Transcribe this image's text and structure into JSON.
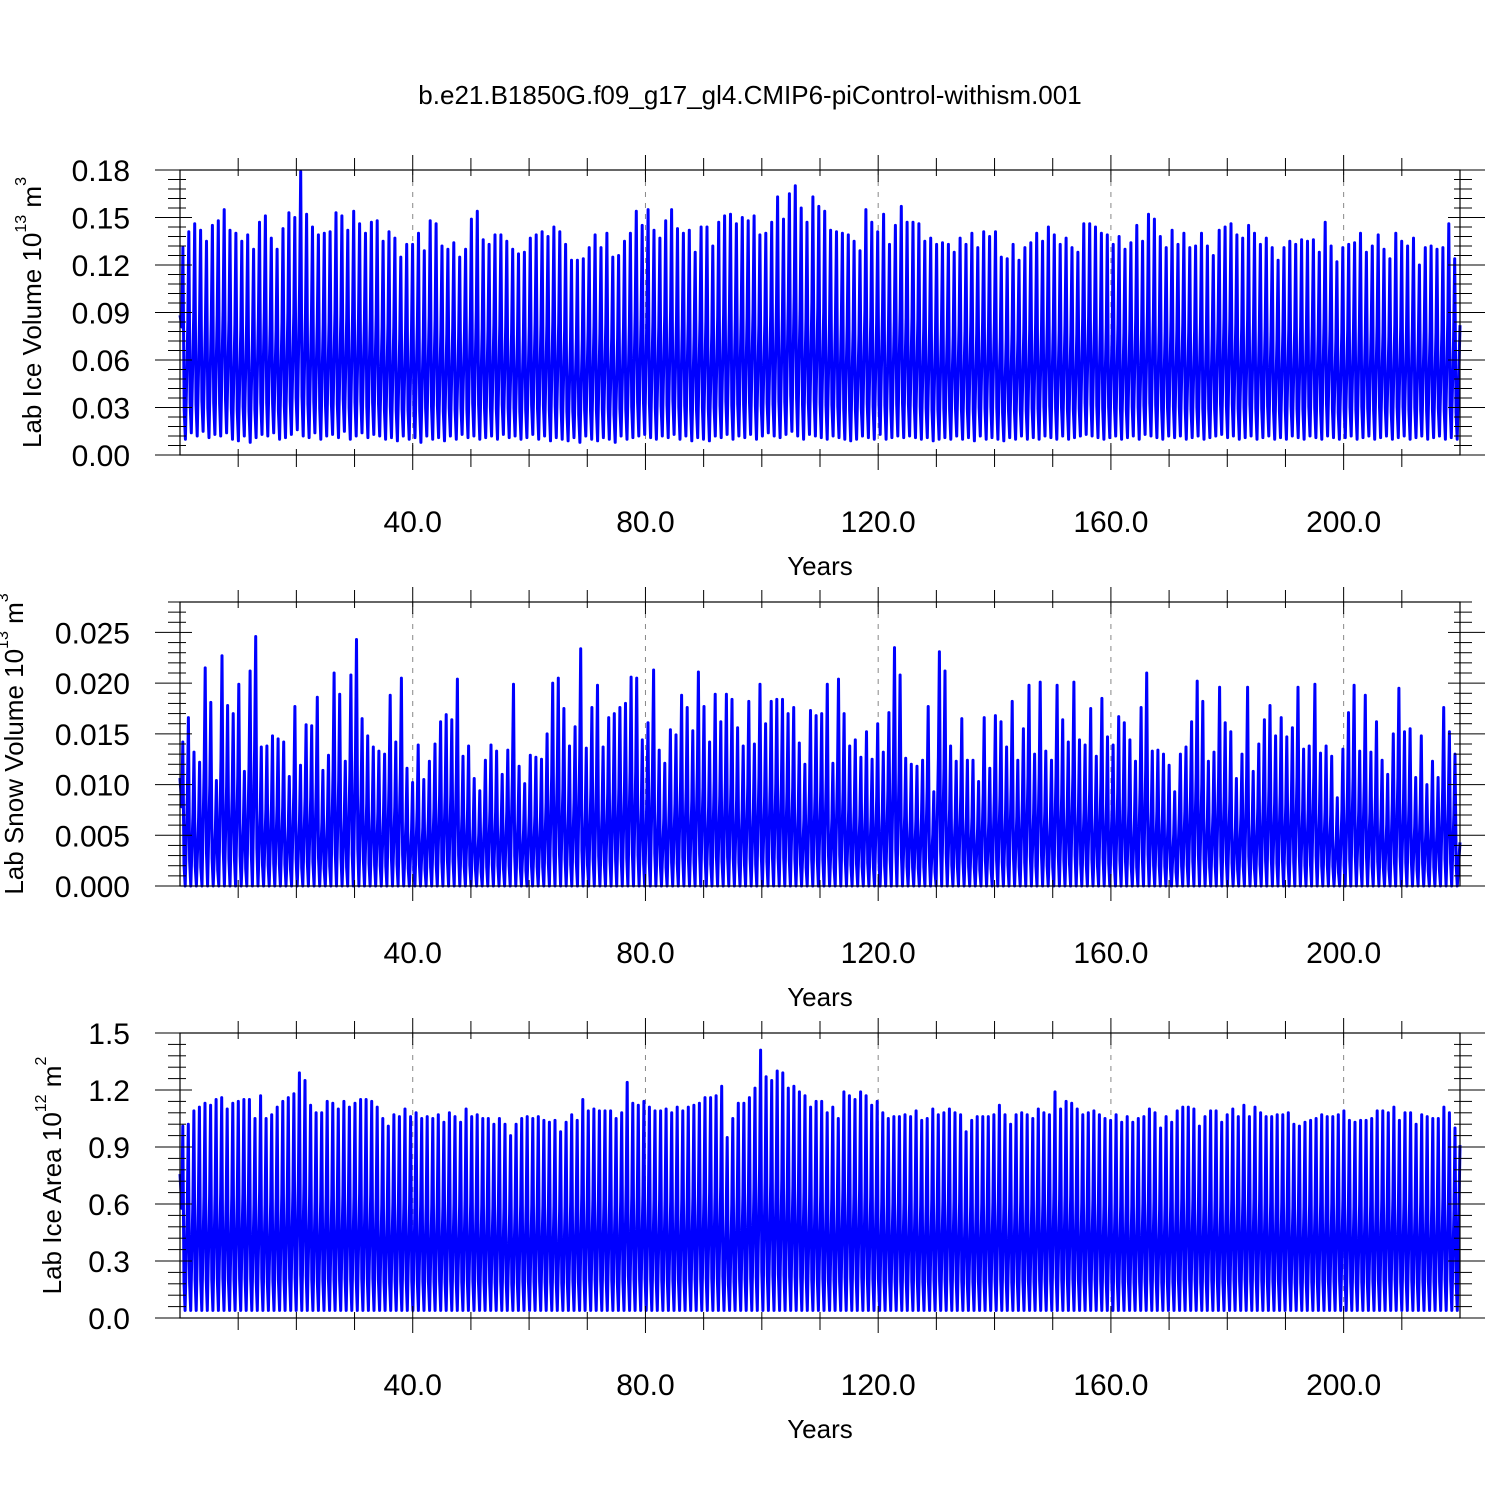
{
  "title": "b.e21.B1850G.f09_g17_gl4.CMIP6-piControl-withism.001",
  "colors": {
    "series": "#0000ff",
    "axis": "#000000",
    "grid": "#888888"
  },
  "chart_data": [
    {
      "type": "line",
      "xlabel": "Years",
      "ylabel": {
        "main": "Lab Ice Volume 10",
        "sup": "13",
        "unit": " m",
        "unit_sup": "3"
      },
      "xlim": [
        0,
        220
      ],
      "ylim": [
        0,
        0.18
      ],
      "x_ticks": [
        40,
        80,
        120,
        160,
        200
      ],
      "x_tick_labels": [
        "40.0",
        "80.0",
        "120.0",
        "160.0",
        "200.0"
      ],
      "y_ticks": [
        0,
        0.03,
        0.06,
        0.09,
        0.12,
        0.15,
        0.18
      ],
      "y_tick_labels": [
        "0.00",
        "0.03",
        "0.06",
        "0.09",
        "0.12",
        "0.15",
        "0.18"
      ],
      "grid": "dashed vertical at major x ticks",
      "series": [
        {
          "note_x_start": 0,
          "annual_max": [
            0.131,
            0.141,
            0.146,
            0.142,
            0.135,
            0.145,
            0.148,
            0.155,
            0.142,
            0.14,
            0.135,
            0.139,
            0.13,
            0.147,
            0.151,
            0.137,
            0.13,
            0.143,
            0.153,
            0.15,
            0.179,
            0.152,
            0.144,
            0.139,
            0.14,
            0.141,
            0.153,
            0.151,
            0.142,
            0.154,
            0.146,
            0.14,
            0.147,
            0.148,
            0.135,
            0.141,
            0.137,
            0.125,
            0.133,
            0.133,
            0.14,
            0.129,
            0.148,
            0.146,
            0.132,
            0.13,
            0.134,
            0.125,
            0.13,
            0.149,
            0.154,
            0.136,
            0.133,
            0.139,
            0.139,
            0.135,
            0.13,
            0.127,
            0.128,
            0.137,
            0.139,
            0.141,
            0.138,
            0.144,
            0.141,
            0.133,
            0.123,
            0.123,
            0.124,
            0.131,
            0.139,
            0.131,
            0.14,
            0.125,
            0.126,
            0.135,
            0.14,
            0.154,
            0.145,
            0.155,
            0.142,
            0.137,
            0.148,
            0.155,
            0.143,
            0.14,
            0.142,
            0.128,
            0.144,
            0.144,
            0.132,
            0.147,
            0.151,
            0.152,
            0.146,
            0.15,
            0.148,
            0.151,
            0.139,
            0.14,
            0.147,
            0.163,
            0.149,
            0.165,
            0.17,
            0.156,
            0.147,
            0.163,
            0.157,
            0.154,
            0.142,
            0.141,
            0.14,
            0.139,
            0.135,
            0.129,
            0.155,
            0.147,
            0.141,
            0.152,
            0.133,
            0.145,
            0.157,
            0.147,
            0.147,
            0.146,
            0.135,
            0.137,
            0.133,
            0.134,
            0.133,
            0.128,
            0.137,
            0.133,
            0.14,
            0.131,
            0.141,
            0.138,
            0.141,
            0.125,
            0.124,
            0.133,
            0.123,
            0.131,
            0.134,
            0.14,
            0.135,
            0.144,
            0.139,
            0.133,
            0.137,
            0.131,
            0.128,
            0.146,
            0.146,
            0.144,
            0.14,
            0.139,
            0.133,
            0.138,
            0.13,
            0.134,
            0.145,
            0.135,
            0.152,
            0.149,
            0.138,
            0.131,
            0.142,
            0.133,
            0.14,
            0.131,
            0.132,
            0.14,
            0.132,
            0.126,
            0.142,
            0.144,
            0.146,
            0.139,
            0.137,
            0.145,
            0.14,
            0.133,
            0.137,
            0.131,
            0.123,
            0.131,
            0.135,
            0.133,
            0.136,
            0.135,
            0.136,
            0.128,
            0.147,
            0.132,
            0.122,
            0.131,
            0.133,
            0.134,
            0.14,
            0.128,
            0.132,
            0.139,
            0.13,
            0.124,
            0.14,
            0.135,
            0.132,
            0.137,
            0.12,
            0.131,
            0.132,
            0.13,
            0.131,
            0.146,
            0.124
          ],
          "annual_min": [
            0.016,
            0.01,
            0.014,
            0.012,
            0.015,
            0.011,
            0.013,
            0.012,
            0.014,
            0.01,
            0.009,
            0.012,
            0.008,
            0.011,
            0.013,
            0.012,
            0.014,
            0.01,
            0.011,
            0.013,
            0.016,
            0.012,
            0.011,
            0.014,
            0.01,
            0.012,
            0.013,
            0.011,
            0.015,
            0.01,
            0.012,
            0.014,
            0.011,
            0.013,
            0.012,
            0.01,
            0.011,
            0.009,
            0.012,
            0.01,
            0.011,
            0.008,
            0.012,
            0.01,
            0.011,
            0.009,
            0.012,
            0.01,
            0.013,
            0.011,
            0.012,
            0.01,
            0.011,
            0.012,
            0.01,
            0.013,
            0.011,
            0.012,
            0.01,
            0.011,
            0.013,
            0.01,
            0.012,
            0.009,
            0.011,
            0.01,
            0.009,
            0.011,
            0.008,
            0.012,
            0.01,
            0.009,
            0.011,
            0.01,
            0.008,
            0.012,
            0.01,
            0.011,
            0.012,
            0.013,
            0.011,
            0.01,
            0.012,
            0.011,
            0.013,
            0.01,
            0.012,
            0.009,
            0.011,
            0.01,
            0.009,
            0.012,
            0.011,
            0.013,
            0.01,
            0.012,
            0.011,
            0.013,
            0.01,
            0.012,
            0.014,
            0.012,
            0.011,
            0.013,
            0.015,
            0.012,
            0.01,
            0.013,
            0.012,
            0.011,
            0.01,
            0.012,
            0.011,
            0.01,
            0.009,
            0.01,
            0.012,
            0.011,
            0.01,
            0.013,
            0.01,
            0.011,
            0.012,
            0.011,
            0.012,
            0.011,
            0.01,
            0.011,
            0.009,
            0.01,
            0.011,
            0.01,
            0.012,
            0.01,
            0.011,
            0.009,
            0.012,
            0.01,
            0.011,
            0.01,
            0.009,
            0.011,
            0.01,
            0.012,
            0.01,
            0.011,
            0.01,
            0.012,
            0.011,
            0.01,
            0.012,
            0.01,
            0.011,
            0.012,
            0.013,
            0.012,
            0.011,
            0.01,
            0.011,
            0.012,
            0.01,
            0.011,
            0.012,
            0.01,
            0.013,
            0.012,
            0.011,
            0.01,
            0.012,
            0.011,
            0.012,
            0.01,
            0.011,
            0.012,
            0.01,
            0.011,
            0.012,
            0.013,
            0.011,
            0.012,
            0.01,
            0.011,
            0.012,
            0.01,
            0.011,
            0.012,
            0.01,
            0.011,
            0.01,
            0.012,
            0.011,
            0.01,
            0.012,
            0.011,
            0.01,
            0.012,
            0.011,
            0.01,
            0.011,
            0.012,
            0.01,
            0.011,
            0.012,
            0.01,
            0.011,
            0.012,
            0.01,
            0.011,
            0.012,
            0.01,
            0.011,
            0.012,
            0.01,
            0.011,
            0.012,
            0.01,
            0.011,
            0.01,
            0.012,
            0.011
          ],
          "end_value": 0.082
        }
      ]
    },
    {
      "type": "line",
      "xlabel": "Years",
      "ylabel": {
        "main": "Lab Snow Volume 10",
        "sup": "13",
        "unit": " m",
        "unit_sup": "3"
      },
      "xlim": [
        0,
        220
      ],
      "ylim": [
        0,
        0.028
      ],
      "x_ticks": [
        40,
        80,
        120,
        160,
        200
      ],
      "x_tick_labels": [
        "40.0",
        "80.0",
        "120.0",
        "160.0",
        "200.0"
      ],
      "y_ticks": [
        0,
        0.005,
        0.01,
        0.015,
        0.02,
        0.025
      ],
      "y_tick_labels": [
        "0.000",
        "0.005",
        "0.010",
        "0.015",
        "0.020",
        "0.025"
      ],
      "grid": "dashed vertical at major x ticks",
      "series": [
        {
          "annual_max": [
            0.0142,
            0.0166,
            0.0132,
            0.0122,
            0.0215,
            0.0181,
            0.0104,
            0.0227,
            0.0178,
            0.017,
            0.0199,
            0.0113,
            0.0212,
            0.0246,
            0.0137,
            0.0138,
            0.0148,
            0.0145,
            0.0142,
            0.0108,
            0.0177,
            0.0119,
            0.0159,
            0.0158,
            0.0186,
            0.0114,
            0.0129,
            0.021,
            0.0189,
            0.0123,
            0.0208,
            0.0243,
            0.0165,
            0.0148,
            0.0137,
            0.0133,
            0.013,
            0.0188,
            0.0142,
            0.0205,
            0.0116,
            0.0102,
            0.0139,
            0.0105,
            0.0123,
            0.014,
            0.0162,
            0.0169,
            0.0164,
            0.0204,
            0.0128,
            0.0138,
            0.0106,
            0.0094,
            0.0124,
            0.0139,
            0.0133,
            0.011,
            0.0134,
            0.0199,
            0.0118,
            0.0101,
            0.0129,
            0.0127,
            0.0125,
            0.015,
            0.02,
            0.0205,
            0.0175,
            0.0138,
            0.0157,
            0.0234,
            0.0136,
            0.0176,
            0.0198,
            0.0137,
            0.0166,
            0.017,
            0.0176,
            0.018,
            0.0206,
            0.0205,
            0.0144,
            0.0161,
            0.0213,
            0.0134,
            0.0121,
            0.0154,
            0.0149,
            0.0188,
            0.0176,
            0.0153,
            0.0211,
            0.0177,
            0.0142,
            0.0189,
            0.0162,
            0.0189,
            0.0184,
            0.0156,
            0.0138,
            0.0182,
            0.014,
            0.0199,
            0.016,
            0.0182,
            0.0184,
            0.0184,
            0.017,
            0.0176,
            0.0141,
            0.012,
            0.0173,
            0.0168,
            0.017,
            0.0199,
            0.0121,
            0.0204,
            0.017,
            0.0138,
            0.0144,
            0.0127,
            0.0152,
            0.0125,
            0.016,
            0.0132,
            0.0171,
            0.0235,
            0.0208,
            0.0126,
            0.012,
            0.0118,
            0.0124,
            0.0177,
            0.0093,
            0.0231,
            0.0212,
            0.0138,
            0.0123,
            0.0165,
            0.0124,
            0.0124,
            0.0103,
            0.0166,
            0.0116,
            0.0168,
            0.0162,
            0.0137,
            0.0182,
            0.0124,
            0.0155,
            0.0198,
            0.013,
            0.0201,
            0.0133,
            0.0124,
            0.0198,
            0.0164,
            0.0142,
            0.0201,
            0.0144,
            0.0139,
            0.0175,
            0.0128,
            0.0185,
            0.0147,
            0.0139,
            0.0167,
            0.0161,
            0.0144,
            0.0123,
            0.0176,
            0.021,
            0.0133,
            0.0134,
            0.013,
            0.0119,
            0.0093,
            0.013,
            0.0137,
            0.0162,
            0.0202,
            0.0182,
            0.0123,
            0.0132,
            0.0196,
            0.0161,
            0.0152,
            0.0106,
            0.013,
            0.0196,
            0.0113,
            0.014,
            0.0164,
            0.0178,
            0.0148,
            0.0166,
            0.0147,
            0.0156,
            0.0196,
            0.0135,
            0.0138,
            0.0199,
            0.0131,
            0.0138,
            0.0128,
            0.0087,
            0.0135,
            0.0171,
            0.0198,
            0.0133,
            0.0188,
            0.0132,
            0.0162,
            0.0124,
            0.011,
            0.015,
            0.0195,
            0.0152,
            0.0155,
            0.0107,
            0.0148,
            0.01,
            0.0123,
            0.0107,
            0.0176,
            0.0152,
            0.013
          ],
          "annual_min": 0.0,
          "end_value": 0.0043
        }
      ]
    },
    {
      "type": "line",
      "xlabel": "Years",
      "ylabel": {
        "main": "Lab Ice Area 10",
        "sup": "12",
        "unit": " m",
        "unit_sup": "2"
      },
      "xlim": [
        0,
        220
      ],
      "ylim": [
        0,
        1.5
      ],
      "x_ticks": [
        40,
        80,
        120,
        160,
        200
      ],
      "x_tick_labels": [
        "40.0",
        "80.0",
        "120.0",
        "160.0",
        "200.0"
      ],
      "y_ticks": [
        0,
        0.3,
        0.6,
        0.9,
        1.2,
        1.5
      ],
      "y_tick_labels": [
        "0.0",
        "0.3",
        "0.6",
        "0.9",
        "1.2",
        "1.5"
      ],
      "grid": "dashed vertical at major x ticks",
      "series": [
        {
          "annual_max": [
            1.01,
            1.02,
            1.09,
            1.11,
            1.13,
            1.12,
            1.15,
            1.16,
            1.1,
            1.13,
            1.14,
            1.15,
            1.15,
            1.05,
            1.17,
            1.05,
            1.07,
            1.11,
            1.14,
            1.16,
            1.18,
            1.29,
            1.25,
            1.12,
            1.08,
            1.08,
            1.14,
            1.13,
            1.1,
            1.14,
            1.11,
            1.13,
            1.15,
            1.15,
            1.14,
            1.11,
            1.05,
            1.01,
            1.07,
            1.06,
            1.1,
            1.06,
            1.08,
            1.05,
            1.06,
            1.05,
            1.07,
            1.03,
            1.08,
            1.06,
            1.03,
            1.1,
            1.06,
            1.07,
            1.05,
            1.05,
            1.02,
            1.05,
            1.02,
            0.96,
            1.02,
            1.05,
            1.06,
            1.05,
            1.06,
            1.04,
            1.03,
            1.04,
            0.98,
            1.03,
            1.07,
            1.04,
            1.15,
            1.09,
            1.1,
            1.09,
            1.09,
            1.09,
            1.05,
            1.08,
            1.24,
            1.13,
            1.12,
            1.14,
            1.11,
            1.09,
            1.09,
            1.1,
            1.08,
            1.11,
            1.09,
            1.11,
            1.12,
            1.13,
            1.16,
            1.16,
            1.17,
            1.22,
            0.95,
            1.05,
            1.13,
            1.13,
            1.16,
            1.21,
            1.41,
            1.27,
            1.25,
            1.3,
            1.29,
            1.21,
            1.22,
            1.19,
            1.17,
            1.11,
            1.14,
            1.14,
            1.08,
            1.11,
            1.05,
            1.19,
            1.17,
            1.15,
            1.19,
            1.17,
            1.12,
            1.14,
            1.08,
            1.05,
            1.06,
            1.06,
            1.07,
            1.06,
            1.09,
            1.04,
            1.05,
            1.1,
            1.07,
            1.08,
            1.1,
            1.08,
            1.07,
            0.98,
            1.04,
            1.06,
            1.06,
            1.06,
            1.07,
            1.12,
            1.07,
            1.02,
            1.07,
            1.08,
            1.07,
            1.05,
            1.1,
            1.08,
            1.07,
            1.19,
            1.1,
            1.14,
            1.13,
            1.1,
            1.07,
            1.08,
            1.09,
            1.07,
            1.05,
            1.04,
            1.07,
            1.03,
            1.06,
            1.03,
            1.05,
            1.06,
            1.1,
            1.08,
            1.0,
            1.06,
            1.03,
            1.09,
            1.11,
            1.11,
            1.1,
            1.01,
            1.06,
            1.09,
            1.09,
            1.03,
            1.07,
            1.1,
            1.06,
            1.12,
            1.06,
            1.11,
            1.08,
            1.06,
            1.06,
            1.07,
            1.07,
            1.08,
            1.02,
            1.01,
            1.03,
            1.04,
            1.05,
            1.07,
            1.06,
            1.06,
            1.07,
            1.09,
            1.04,
            1.03,
            1.04,
            1.04,
            1.05,
            1.09,
            1.09,
            1.08,
            1.11,
            1.04,
            1.08,
            1.08,
            1.02,
            1.07,
            1.06,
            1.05,
            1.05,
            1.11,
            1.08,
            1.0
          ],
          "annual_min": 0.04,
          "end_value": 0.91
        }
      ]
    }
  ]
}
